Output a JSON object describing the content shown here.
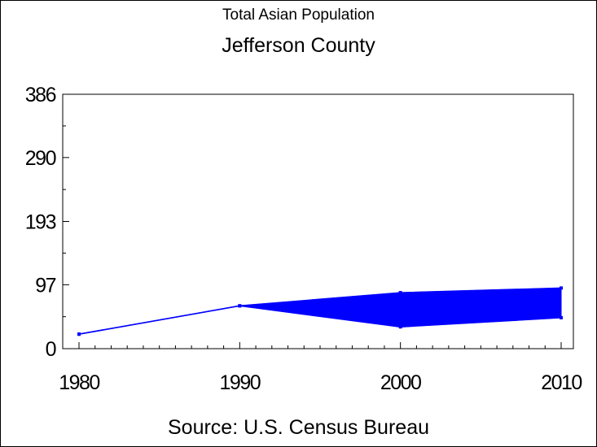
{
  "chart_data": {
    "type": "area",
    "title": "Total Asian Population",
    "subtitle": "Jefferson County",
    "source": "Source: U.S. Census Bureau",
    "xlabel": "",
    "ylabel": "",
    "x_ticks": [
      "1980",
      "1990",
      "2000",
      "2010"
    ],
    "y_ticks": [
      "0",
      "97",
      "193",
      "290",
      "386"
    ],
    "ylim": [
      0,
      386
    ],
    "xlim": [
      1980,
      2010
    ],
    "grid": false,
    "color": "#0000ff",
    "series": [
      {
        "values": [
          [
            1980,
            22
          ],
          [
            1990,
            65
          ],
          [
            2000,
            85
          ],
          [
            2010,
            92
          ]
        ]
      },
      {
        "values": [
          [
            1980,
            22
          ],
          [
            1990,
            65
          ],
          [
            2000,
            33
          ],
          [
            2010,
            47
          ]
        ]
      }
    ]
  }
}
